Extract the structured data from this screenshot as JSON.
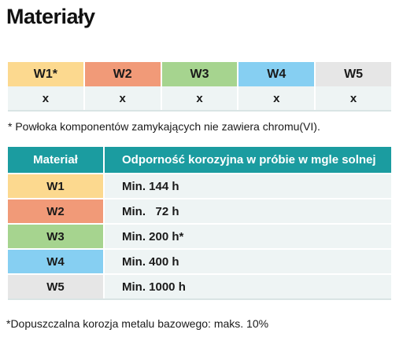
{
  "title": "Materiały",
  "colors": {
    "W1": "#fcd98f",
    "W2": "#f19a78",
    "W3": "#a6d48f",
    "W4": "#86cff2",
    "W5": "#e6e6e6",
    "header": "#1b9ca0",
    "cell": "#eef4f4"
  },
  "grades": {
    "headers": [
      "W1*",
      "W2",
      "W3",
      "W4",
      "W5"
    ],
    "marks": [
      "x",
      "x",
      "x",
      "x",
      "x"
    ]
  },
  "note1": "*  Powłoka komponentów zamykających nie zawiera chromu(VI).",
  "resistance": {
    "col_material": "Materiał",
    "col_resistance": "Odporność korozyjna w próbie w mgle solnej",
    "rows": [
      {
        "material": "W1",
        "value": "Min. 144 h"
      },
      {
        "material": "W2",
        "value": "Min.   72 h"
      },
      {
        "material": "W3",
        "value": "Min. 200 h*"
      },
      {
        "material": "W4",
        "value": "Min. 400 h"
      },
      {
        "material": "W5",
        "value": "Min. 1000 h"
      }
    ]
  },
  "note2": "*Dopuszczalna korozja metalu bazowego: maks. 10%"
}
